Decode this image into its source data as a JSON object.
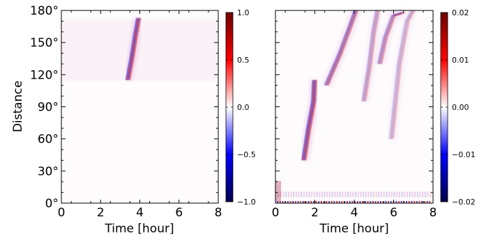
{
  "figure": {
    "panels": [
      {
        "id": "left",
        "type": "heatmap",
        "xlabel": "Time [hour]",
        "ylabel": "Distance",
        "xlim": [
          0,
          8
        ],
        "ylim": [
          0,
          180
        ],
        "xticks": [
          "0",
          "2",
          "4",
          "6",
          "8"
        ],
        "yticks": [
          "0°",
          "30°",
          "60°",
          "90°",
          "120°",
          "150°",
          "180°"
        ],
        "colorbar": {
          "range": [
            -1.0,
            1.0
          ],
          "ticks": [
            "1.0",
            "0.5",
            "0.0",
            "−0.5",
            "−1.0"
          ]
        }
      },
      {
        "id": "right",
        "type": "heatmap",
        "xlabel": "Time [hour]",
        "ylabel": "",
        "xlim": [
          0,
          8
        ],
        "ylim": [
          0,
          180
        ],
        "xticks": [
          "0",
          "2",
          "4",
          "6",
          "8"
        ],
        "yticks": [],
        "colorbar": {
          "range": [
            -0.02,
            0.02
          ],
          "ticks": [
            "0.02",
            "0.01",
            "0.00",
            "−0.01",
            "−0.02"
          ]
        }
      }
    ],
    "colormap": {
      "negative": "#00004a",
      "mid_negative": "#0000ff",
      "zero": "#ffffff",
      "mid_positive": "#ff0000",
      "positive": "#6b0000"
    }
  },
  "chart_data": [
    {
      "type": "heatmap",
      "xlabel": "Time [hour]",
      "ylabel": "Distance",
      "xlim": [
        0,
        8
      ],
      "ylim": [
        0,
        180
      ],
      "clim": [
        -1.0,
        1.0
      ],
      "features": [
        {
          "kind": "wave_front",
          "path": [
            [
              3.4,
              115
            ],
            [
              3.6,
              135
            ],
            [
              3.8,
              158
            ],
            [
              3.95,
              173
            ]
          ],
          "amplitude": 1.0
        }
      ],
      "data_extent_y": [
        115,
        173
      ]
    },
    {
      "type": "heatmap",
      "xlabel": "Time [hour]",
      "ylabel": "",
      "xlim": [
        0,
        8
      ],
      "ylim": [
        0,
        180
      ],
      "clim": [
        -0.02,
        0.02
      ],
      "features": [
        {
          "kind": "wave_front",
          "path": [
            [
              1.45,
              40
            ],
            [
              1.7,
              70
            ],
            [
              1.95,
              95
            ],
            [
              2.0,
              115
            ]
          ],
          "amplitude": 0.02
        },
        {
          "kind": "wave_front",
          "path": [
            [
              2.6,
              110
            ],
            [
              3.3,
              140
            ],
            [
              3.8,
              165
            ],
            [
              4.1,
              180
            ]
          ],
          "amplitude": 0.015
        },
        {
          "kind": "wave_front",
          "path": [
            [
              4.5,
              95
            ],
            [
              4.8,
              130
            ],
            [
              5.0,
              160
            ],
            [
              5.2,
              180
            ]
          ],
          "amplitude": 0.01
        },
        {
          "kind": "wave_front",
          "path": [
            [
              5.3,
              130
            ],
            [
              5.6,
              155
            ],
            [
              6.0,
              175
            ],
            [
              6.5,
              178
            ]
          ],
          "amplitude": 0.012
        },
        {
          "kind": "wave_front",
          "path": [
            [
              5.9,
              60
            ],
            [
              6.3,
              130
            ],
            [
              6.7,
              170
            ],
            [
              7.0,
              180
            ]
          ],
          "amplitude": 0.008
        },
        {
          "kind": "noise_band",
          "y_range": [
            0,
            12
          ],
          "amplitude": 0.02
        }
      ]
    }
  ]
}
